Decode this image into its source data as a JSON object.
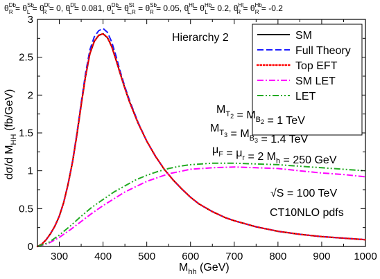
{
  "chart_data": {
    "type": "line",
    "header_parts": [
      {
        "base": "θ",
        "sup": "Db",
        "sub": "R",
        "rest": " = "
      },
      {
        "base": "θ",
        "sup": "Sb",
        "sub": "L",
        "rest": " = "
      },
      {
        "base": "θ",
        "sup": "Dt",
        "sub": "R",
        "rest": " = 0, "
      },
      {
        "base": "θ",
        "sup": "Dt",
        "sub": "L",
        "rest": " = 0.081, "
      },
      {
        "base": "θ",
        "sup": "Db",
        "sub": "L",
        "rest": " = "
      },
      {
        "base": "θ",
        "sup": "St",
        "sub": "L,R",
        "rest": " = "
      },
      {
        "base": "θ",
        "sup": "Sb",
        "sub": "R",
        "rest": " = 0.05, "
      },
      {
        "base": "θ",
        "sup": "Ht",
        "sub": "L",
        "rest": " = "
      },
      {
        "base": "θ",
        "sup": "Hb",
        "sub": "L",
        "rest": " = 0.2, "
      },
      {
        "base": "θ",
        "sup": "Ht",
        "sub": "R",
        "rest": " = "
      },
      {
        "base": "θ",
        "sup": "Hb",
        "sub": "R",
        "rest": " = -0.2"
      }
    ],
    "panel_label": "Hierarchy 2",
    "xlabel": {
      "base": "M",
      "sub": "hh",
      "rest": " (GeV)"
    },
    "ylabel": {
      "pre": "dσ/d M",
      "sub": "HH",
      "post": " (fb/GeV)"
    },
    "xlim": [
      250,
      1000
    ],
    "ylim": [
      0,
      3
    ],
    "xticks": [
      300,
      400,
      500,
      600,
      700,
      800,
      900,
      1000
    ],
    "yticks": [
      0,
      0.5,
      1,
      1.5,
      2,
      2.5,
      3
    ],
    "ytick_labels": [
      "0",
      "0.5",
      "1",
      "1.5",
      "2",
      "2.5",
      "3"
    ],
    "legend": {
      "position": "top-right"
    },
    "annotations": [
      {
        "id": "mass2",
        "parts": [
          {
            "t": "M"
          },
          {
            "t": "T",
            "sub": true
          },
          {
            "t": "2",
            "subsub": true
          },
          {
            "t": " = M"
          },
          {
            "t": "B",
            "sub": true
          },
          {
            "t": "2",
            "subsub": true
          },
          {
            "t": " = 1 TeV"
          }
        ]
      },
      {
        "id": "mass3",
        "parts": [
          {
            "t": "M"
          },
          {
            "t": "T",
            "sub": true
          },
          {
            "t": "3",
            "subsub": true
          },
          {
            "t": " = M"
          },
          {
            "t": "B",
            "sub": true
          },
          {
            "t": "3",
            "subsub": true
          },
          {
            "t": " = 1.4 TeV"
          }
        ]
      },
      {
        "id": "scales",
        "parts": [
          {
            "t": "μ"
          },
          {
            "t": "F",
            "sub": true
          },
          {
            "t": " = μ"
          },
          {
            "t": "r",
            "sub": true
          },
          {
            "t": " = 2 M"
          },
          {
            "t": "h",
            "sub": true
          },
          {
            "t": " = 250 GeV"
          }
        ]
      },
      {
        "id": "energy",
        "parts": [
          {
            "t": "√S = 100 TeV"
          }
        ]
      },
      {
        "id": "pdfs",
        "parts": [
          {
            "t": "CT10NLO pdfs"
          }
        ]
      }
    ],
    "series": [
      {
        "name": "SM",
        "color": "#000000",
        "dash": "solid",
        "x": [
          250,
          260,
          270,
          280,
          290,
          300,
          310,
          320,
          330,
          340,
          350,
          360,
          370,
          380,
          390,
          400,
          410,
          420,
          430,
          440,
          450,
          460,
          480,
          500,
          520,
          540,
          560,
          580,
          600,
          620,
          650,
          680,
          700,
          750,
          800,
          850,
          900,
          950,
          1000
        ],
        "y": [
          0,
          0.03,
          0.09,
          0.17,
          0.27,
          0.4,
          0.58,
          0.82,
          1.11,
          1.47,
          1.87,
          2.25,
          2.55,
          2.71,
          2.79,
          2.81,
          2.76,
          2.64,
          2.46,
          2.27,
          2.09,
          1.92,
          1.63,
          1.39,
          1.19,
          1.02,
          0.88,
          0.76,
          0.65,
          0.56,
          0.46,
          0.38,
          0.34,
          0.26,
          0.2,
          0.16,
          0.13,
          0.11,
          0.09
        ]
      },
      {
        "name": "Full Theory",
        "color": "#1a1aff",
        "dash": "long-dash",
        "x": [
          250,
          260,
          270,
          280,
          290,
          300,
          310,
          320,
          330,
          340,
          350,
          360,
          370,
          380,
          390,
          400,
          410,
          420,
          430,
          440,
          450,
          460,
          480,
          500,
          520,
          540,
          560,
          580,
          600,
          620,
          650,
          680,
          700,
          750,
          800,
          850,
          900,
          950,
          1000
        ],
        "y": [
          0,
          0.03,
          0.09,
          0.17,
          0.27,
          0.4,
          0.58,
          0.82,
          1.12,
          1.49,
          1.9,
          2.29,
          2.6,
          2.77,
          2.85,
          2.88,
          2.83,
          2.7,
          2.51,
          2.3,
          2.11,
          1.94,
          1.64,
          1.39,
          1.19,
          1.02,
          0.88,
          0.76,
          0.65,
          0.56,
          0.46,
          0.38,
          0.34,
          0.26,
          0.2,
          0.16,
          0.13,
          0.11,
          0.09
        ]
      },
      {
        "name": "Top EFT",
        "color": "#ff0000",
        "dash": "dotted",
        "x": [
          250,
          260,
          270,
          280,
          290,
          300,
          310,
          320,
          330,
          340,
          350,
          360,
          370,
          380,
          390,
          400,
          410,
          420,
          430,
          440,
          450,
          460,
          480,
          500,
          520,
          540,
          560,
          580,
          600,
          620,
          650,
          680,
          700,
          750,
          800,
          850,
          900,
          950,
          1000
        ],
        "y": [
          0,
          0.03,
          0.09,
          0.17,
          0.27,
          0.4,
          0.58,
          0.82,
          1.11,
          1.47,
          1.87,
          2.25,
          2.55,
          2.71,
          2.79,
          2.81,
          2.76,
          2.64,
          2.46,
          2.27,
          2.09,
          1.92,
          1.63,
          1.39,
          1.19,
          1.02,
          0.88,
          0.76,
          0.65,
          0.56,
          0.46,
          0.38,
          0.34,
          0.26,
          0.2,
          0.16,
          0.13,
          0.11,
          0.09
        ]
      },
      {
        "name": "SM LET",
        "color": "#ff00ff",
        "dash": "dash-dot",
        "x": [
          250,
          275,
          300,
          325,
          350,
          375,
          400,
          425,
          450,
          475,
          500,
          525,
          550,
          575,
          600,
          650,
          700,
          750,
          800,
          850,
          900,
          950,
          1000
        ],
        "y": [
          0,
          0.04,
          0.12,
          0.22,
          0.33,
          0.44,
          0.54,
          0.63,
          0.72,
          0.79,
          0.86,
          0.91,
          0.96,
          0.99,
          1.02,
          1.04,
          1.05,
          1.04,
          1.03,
          1.0,
          0.97,
          0.95,
          0.92
        ]
      },
      {
        "name": "LET",
        "color": "#22aa22",
        "dash": "dash-dot-dot",
        "x": [
          250,
          275,
          300,
          325,
          350,
          375,
          400,
          425,
          450,
          475,
          500,
          525,
          550,
          575,
          600,
          650,
          700,
          750,
          800,
          850,
          900,
          950,
          1000
        ],
        "y": [
          0,
          0.05,
          0.15,
          0.27,
          0.4,
          0.52,
          0.62,
          0.72,
          0.8,
          0.88,
          0.94,
          0.99,
          1.03,
          1.06,
          1.08,
          1.1,
          1.1,
          1.09,
          1.08,
          1.06,
          1.04,
          1.02,
          1.0
        ]
      }
    ]
  }
}
